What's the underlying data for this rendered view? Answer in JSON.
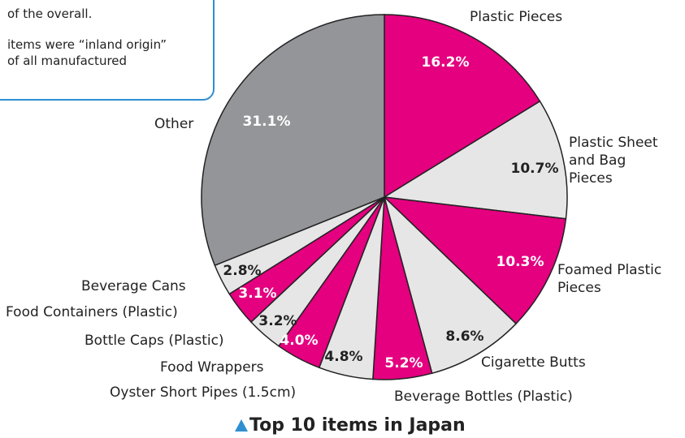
{
  "note_lines": [
    "of the overall.",
    "items were “inland origin”",
    "of all manufactured"
  ],
  "chart_data": {
    "type": "pie",
    "title": "Top 10 items in Japan",
    "categories": [
      "Plastic Pieces",
      "Plastic Sheet\nand Bag\nPieces",
      "Foamed Plastic\nPieces",
      "Cigarette Butts",
      "Beverage Bottles (Plastic)",
      "Oyster Short Pipes (1.5cm)",
      "Food Wrappers",
      "Bottle Caps (Plastic)",
      "Food Containers (Plastic)",
      "Beverage Cans",
      "Other"
    ],
    "values": [
      16.2,
      10.7,
      10.3,
      8.6,
      5.2,
      4.8,
      4.0,
      3.2,
      3.1,
      2.8,
      31.1
    ],
    "value_labels": [
      "16.2%",
      "10.7%",
      "10.3%",
      "8.6%",
      "5.2%",
      "4.8%",
      "4.0%",
      "3.2%",
      "3.1%",
      "2.8%",
      "31.1%"
    ],
    "colors": [
      "#e4007f",
      "#e6e6e6",
      "#e4007f",
      "#e6e6e6",
      "#e4007f",
      "#e6e6e6",
      "#e4007f",
      "#e6e6e6",
      "#e4007f",
      "#e6e6e6",
      "#939598"
    ]
  }
}
